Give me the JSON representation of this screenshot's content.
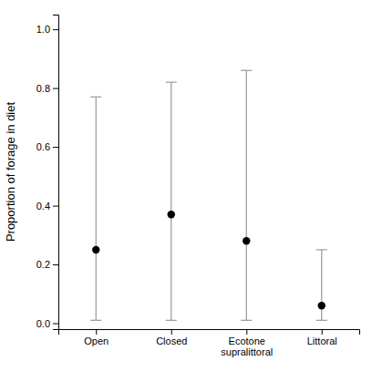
{
  "chart_data": {
    "type": "scatter",
    "categories": [
      "Open",
      "Closed",
      "Ecotone\nsupralittoral",
      "Littoral"
    ],
    "values": [
      0.25,
      0.37,
      0.28,
      0.06
    ],
    "lower_bounds": [
      0.01,
      0.01,
      0.01,
      0.01
    ],
    "upper_bounds": [
      0.77,
      0.82,
      0.86,
      0.25
    ],
    "color": "black",
    "ylabel": "Proportion of forage in diet",
    "ylim": [
      -0.02,
      1.05
    ],
    "yticks": [
      {
        "value": 0.0,
        "label": "0.0"
      },
      0.2,
      0.4,
      0.6,
      0.8,
      {
        "value": 1.0,
        "label": "1.0"
      }
    ]
  }
}
